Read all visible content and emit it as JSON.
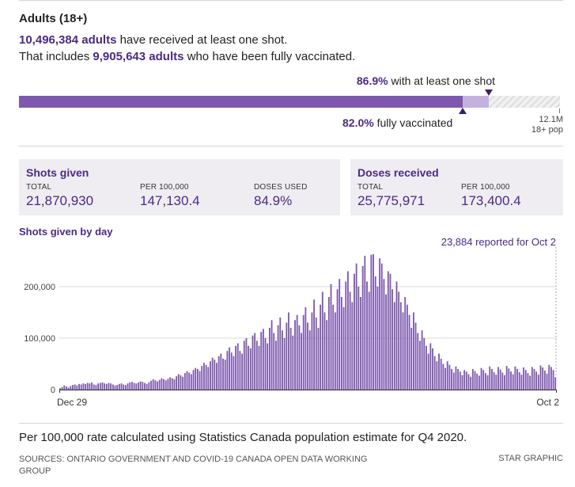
{
  "header": {
    "title": "Adults (18+)",
    "line1_value": "10,496,384 adults",
    "line1_rest": " have received at least one shot.",
    "line2_pre": "That includes ",
    "line2_value": "9,905,643 adults",
    "line2_rest": " who have been fully vaccinated."
  },
  "progress": {
    "one_shot_pct": "86.9%",
    "one_shot_label": " with at least one shot",
    "one_shot_fraction": 0.869,
    "full_pct": "82.0%",
    "full_label": " fully vaccinated",
    "full_fraction": 0.82,
    "pop_value": "12.1M",
    "pop_label": "18+ pop",
    "colors": {
      "full": "#7d58ad",
      "partial": "#c3b2dd",
      "marker": "#3b1f6e"
    }
  },
  "shots_given": {
    "title": "Shots given",
    "total_label": "TOTAL",
    "total": "21,870,930",
    "per100k_label": "PER 100,000",
    "per100k": "147,130.4",
    "doses_used_label": "DOSES USED",
    "doses_used": "84.9%"
  },
  "doses_received": {
    "title": "Doses received",
    "total_label": "TOTAL",
    "total": "25,775,971",
    "per100k_label": "PER 100,000",
    "per100k": "173,400.4"
  },
  "chart_title": "Shots given by day",
  "callout": "23,884 reported for Oct 2",
  "chart_data": {
    "type": "bar",
    "title": "Shots given by day",
    "x_start": "Dec 29",
    "x_end": "Oct 2",
    "x_tick_labels": [
      "Dec 29",
      "Oct 2"
    ],
    "y_tick_labels": [
      "0",
      "100,000",
      "200,000"
    ],
    "y_ticks": [
      0,
      100000,
      200000
    ],
    "ylim": [
      0,
      275000
    ],
    "bar_color": "#7d58ad",
    "grid": true,
    "annotation": {
      "label": "23,884 reported for Oct 2",
      "x": "Oct 2",
      "value": 23884
    },
    "values": [
      3000,
      5000,
      8000,
      6000,
      4000,
      7000,
      9000,
      10000,
      8000,
      11000,
      10000,
      12000,
      11000,
      13000,
      12000,
      14000,
      10000,
      9000,
      12000,
      13000,
      14000,
      12000,
      11000,
      13000,
      12000,
      10000,
      8000,
      9000,
      11000,
      12000,
      10000,
      9000,
      12000,
      14000,
      15000,
      13000,
      12000,
      14000,
      16000,
      15000,
      13000,
      11000,
      14000,
      17000,
      20000,
      18000,
      16000,
      19000,
      22000,
      20000,
      18000,
      21000,
      24000,
      22000,
      20000,
      26000,
      30000,
      28000,
      25000,
      32000,
      36000,
      33000,
      30000,
      38000,
      42000,
      40000,
      36000,
      46000,
      52000,
      48000,
      44000,
      55000,
      62000,
      58000,
      52000,
      65000,
      70000,
      60000,
      58000,
      75000,
      82000,
      72000,
      65000,
      85000,
      90000,
      75000,
      70000,
      95000,
      100000,
      85000,
      80000,
      105000,
      110000,
      95000,
      85000,
      112000,
      118000,
      100000,
      90000,
      120000,
      135000,
      110000,
      95000,
      125000,
      140000,
      115000,
      100000,
      130000,
      150000,
      120000,
      105000,
      135000,
      145000,
      125000,
      110000,
      145000,
      160000,
      130000,
      115000,
      150000,
      175000,
      140000,
      120000,
      165000,
      190000,
      150000,
      135000,
      180000,
      205000,
      165000,
      150000,
      195000,
      215000,
      180000,
      160000,
      210000,
      230000,
      190000,
      170000,
      225000,
      245000,
      200000,
      180000,
      240000,
      260000,
      210000,
      190000,
      262000,
      263000,
      220000,
      200000,
      255000,
      245000,
      215000,
      185000,
      230000,
      225000,
      195000,
      170000,
      210000,
      190000,
      170000,
      150000,
      180000,
      165000,
      145000,
      120000,
      150000,
      130000,
      110000,
      95000,
      115000,
      100000,
      85000,
      70000,
      90000,
      80000,
      65000,
      55000,
      70000,
      60000,
      50000,
      42000,
      55000,
      48000,
      40000,
      33000,
      45000,
      40000,
      35000,
      28000,
      38000,
      35000,
      30000,
      25000,
      40000,
      36000,
      31000,
      27000,
      42000,
      38000,
      32000,
      28000,
      45000,
      40000,
      34000,
      29000,
      44000,
      39000,
      33000,
      28000,
      46000,
      41000,
      35000,
      30000,
      45000,
      40000,
      34000,
      29000,
      43000,
      38000,
      32000,
      27000,
      44000,
      40000,
      35000,
      29000,
      47000,
      43000,
      37000,
      31000,
      48000,
      44000,
      38000,
      23884
    ]
  },
  "footer": {
    "note": "Per 100,000 rate calculated using Statistics Canada population estimate for Q4 2020.",
    "sources": "SOURCES: ONTARIO GOVERNMENT AND COVID-19 CANADA OPEN DATA WORKING GROUP",
    "credit": "STAR GRAPHIC"
  }
}
